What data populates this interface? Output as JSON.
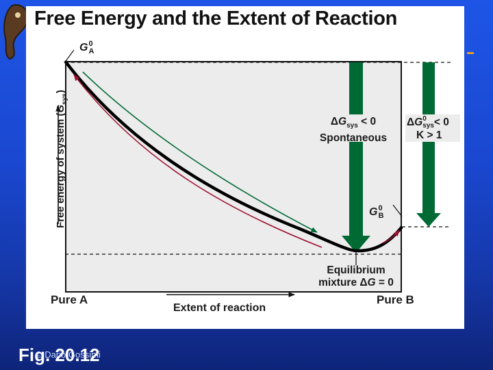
{
  "slide": {
    "title": "Free Energy and the Extent of Reaction",
    "fig_label": "Fig. 20.12",
    "copyright": "© Dario Gossimi"
  },
  "diagram": {
    "y_axis_label_main": "Free energy of system (",
    "y_axis_label_sym": "G",
    "y_axis_label_sub": "sys",
    "y_axis_label_end": ")",
    "x_axis_label": "Extent of reaction",
    "pure_a": "Pure A",
    "pure_b": "Pure B",
    "ga_symbol": "G",
    "ga_sup": "0",
    "ga_sub": "A",
    "gb_symbol": "G",
    "gb_sup": "0",
    "gb_sub": "B",
    "spont_delta": "Δ",
    "spont_g": "G",
    "spont_sub": "sys",
    "spont_rel": " < 0",
    "spont_word": "Spontaneous",
    "std_delta": "Δ",
    "std_g": "G",
    "std_sup": "0",
    "std_sub": "sys",
    "std_rel": "< 0",
    "std_k": "K > 1",
    "eq_line1": "Equilibrium",
    "eq_line2_pre": "mixture Δ",
    "eq_line2_g": "G",
    "eq_line2_post": " = 0",
    "colors": {
      "green_arrow": "#006a34",
      "red_arrow": "#9e1030",
      "curve": "#000000",
      "plot_bg": "#ececec"
    }
  }
}
